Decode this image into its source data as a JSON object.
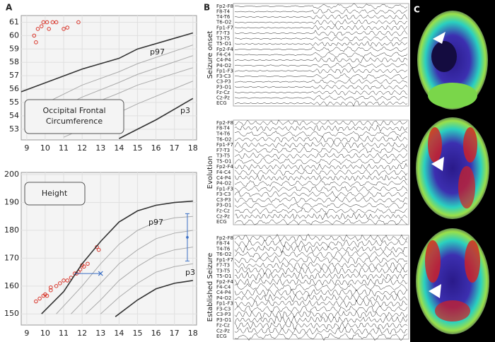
{
  "panels": {
    "a": "A",
    "b": "B",
    "c": "C"
  },
  "chart_data": [
    {
      "type": "scatter",
      "annotations": [
        "Occipital Frontal Circumference",
        "p97",
        "p3"
      ],
      "xlim": [
        8.7,
        18.2
      ],
      "xticks": [
        9,
        10,
        11,
        12,
        13,
        14,
        15,
        16,
        17,
        18
      ],
      "ylim": [
        52.2,
        61.5
      ],
      "yticks": [
        53,
        54,
        55,
        56,
        57,
        58,
        59,
        60,
        61
      ],
      "series": [
        {
          "color": "#d9362b",
          "x": [
            9.4,
            9.5,
            9.6,
            9.8,
            9.9,
            10.1,
            10.2,
            10.4,
            10.6,
            11.0,
            11.2,
            11.8
          ],
          "values": [
            60.0,
            59.5,
            60.5,
            60.7,
            61.0,
            61.0,
            60.5,
            61.0,
            61.0,
            60.5,
            60.6,
            61.0
          ]
        },
        {
          "color": "#333333",
          "x": [
            8.7,
            12,
            14,
            15,
            18
          ],
          "values": [
            55.8,
            57.5,
            58.3,
            59.0,
            60.2
          ]
        },
        {
          "color": "#aaaaaa",
          "x": [
            9.2,
            12,
            14,
            15,
            18
          ],
          "values": [
            54.4,
            56.3,
            57.3,
            57.9,
            59.3
          ]
        },
        {
          "color": "#aaaaaa",
          "x": [
            9.2,
            12,
            14,
            15,
            18
          ],
          "values": [
            53.5,
            55.4,
            56.5,
            57.1,
            58.5
          ]
        },
        {
          "color": "#aaaaaa",
          "x": [
            9.2,
            12,
            14,
            15,
            18
          ],
          "values": [
            52.8,
            54.6,
            55.7,
            56.3,
            57.6
          ]
        },
        {
          "color": "#aaaaaa",
          "x": [
            11.0,
            13,
            15,
            18
          ],
          "values": [
            52.4,
            53.6,
            54.9,
            56.6
          ]
        },
        {
          "color": "#333333",
          "x": [
            14.0,
            15,
            16,
            18
          ],
          "values": [
            52.3,
            53.0,
            53.7,
            55.3
          ]
        }
      ]
    },
    {
      "type": "scatter",
      "annotations": [
        "Height",
        "p97",
        "p3"
      ],
      "xlim": [
        8.7,
        18.2
      ],
      "xticks": [
        9,
        10,
        11,
        12,
        13,
        14,
        15,
        16,
        17,
        18
      ],
      "ylim": [
        146,
        200.8
      ],
      "yticks": [
        150,
        160,
        170,
        180,
        190,
        200
      ],
      "series": [
        {
          "color": "#d9362b",
          "x": [
            9.5,
            9.7,
            9.9,
            10.0,
            10.1,
            10.3,
            10.3,
            10.6,
            10.8,
            11.0,
            11.2,
            11.4,
            11.6,
            11.7,
            11.8,
            11.9,
            12.0,
            12.1,
            12.3,
            12.8,
            12.9
          ],
          "values": [
            154.5,
            155.5,
            156.5,
            157,
            156.5,
            158.5,
            159.5,
            160,
            161,
            162,
            162,
            163,
            164.5,
            164.5,
            165,
            166,
            167.5,
            167,
            168,
            174,
            173
          ]
        },
        {
          "color": "#333333",
          "x": [
            9.8,
            11,
            12,
            13,
            14,
            15,
            16,
            17,
            18
          ],
          "values": [
            150,
            158,
            168,
            176,
            183,
            187,
            189,
            190,
            190.5
          ]
        },
        {
          "color": "#aaaaaa",
          "x": [
            10.6,
            12,
            13,
            14,
            15,
            16,
            17,
            18
          ],
          "values": [
            150,
            160,
            168,
            175,
            180,
            183,
            184.5,
            185
          ]
        },
        {
          "color": "#aaaaaa",
          "x": [
            11.4,
            13,
            14,
            15,
            16,
            17,
            18
          ],
          "values": [
            150,
            161,
            168,
            173,
            177,
            179,
            180
          ]
        },
        {
          "color": "#aaaaaa",
          "x": [
            12.2,
            13,
            14,
            15,
            16,
            17,
            18
          ],
          "values": [
            150,
            155,
            162,
            167,
            171,
            173,
            174
          ]
        },
        {
          "color": "#aaaaaa",
          "x": [
            13.0,
            14,
            15,
            16,
            17,
            18
          ],
          "values": [
            150,
            156,
            161,
            165,
            167,
            168
          ]
        },
        {
          "color": "#333333",
          "x": [
            13.8,
            15,
            16,
            17,
            18
          ],
          "values": [
            149,
            155,
            159,
            161,
            162
          ]
        },
        {
          "color": "#3a6fc4",
          "x": [
            11.6,
            13.0
          ],
          "values": [
            164.5,
            164.5
          ]
        }
      ],
      "errorbar": {
        "color": "#3a6fc4",
        "x": 17.7,
        "value": 177.5,
        "error": 8.5
      }
    }
  ],
  "eeg": {
    "sections": [
      "Seizure onset",
      "Evolution",
      "Established Seizure"
    ],
    "channels": [
      "Fp2-F8",
      "F8-T4",
      "T4-T6",
      "T6-O2",
      "Fp1-F7",
      "F7-T3",
      "T3-T5",
      "T5-O1",
      "Fp2-F4",
      "F4-C4",
      "C4-P4",
      "P4-O2",
      "Fp1-F3",
      "F3-C3",
      "C3-P3",
      "P3-O1",
      "Fz-Cz",
      "Cz-Pz",
      "ECG"
    ]
  }
}
